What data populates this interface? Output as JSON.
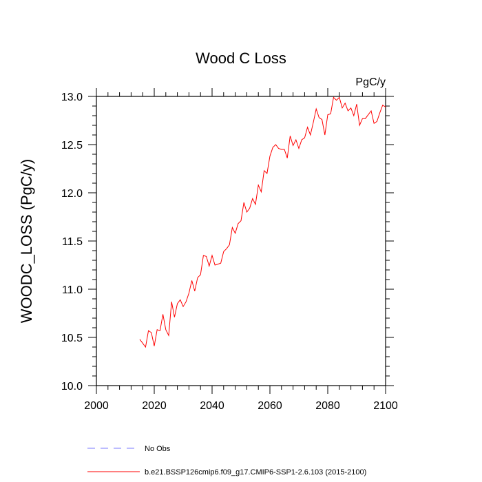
{
  "chart_data": {
    "type": "line",
    "title": "Wood C Loss",
    "units": "PgC/y",
    "xlabel": "",
    "ylabel": "WOODC_LOSS  (PgC/y)",
    "xlim": [
      2000,
      2100
    ],
    "ylim": [
      10.0,
      13.0
    ],
    "x_ticks": [
      "2000",
      "2020",
      "2040",
      "2060",
      "2080",
      "2100"
    ],
    "y_ticks": [
      "10.0",
      "10.5",
      "11.0",
      "11.5",
      "12.0",
      "12.5",
      "13.0"
    ],
    "series": [
      {
        "name": "b.e21.BSSP126cmip6.f09_g17.CMIP6-SSP1-2.6.103 (2015-2100)",
        "color": "#ff0000",
        "x": [
          2015,
          2016,
          2017,
          2018,
          2019,
          2020,
          2021,
          2022,
          2023,
          2024,
          2025,
          2026,
          2027,
          2028,
          2029,
          2030,
          2031,
          2032,
          2033,
          2034,
          2035,
          2036,
          2037,
          2038,
          2039,
          2040,
          2041,
          2042,
          2043,
          2044,
          2045,
          2046,
          2047,
          2048,
          2049,
          2050,
          2051,
          2052,
          2053,
          2054,
          2055,
          2056,
          2057,
          2058,
          2059,
          2060,
          2061,
          2062,
          2063,
          2064,
          2065,
          2066,
          2067,
          2068,
          2069,
          2070,
          2071,
          2072,
          2073,
          2074,
          2075,
          2076,
          2077,
          2078,
          2079,
          2080,
          2081,
          2082,
          2083,
          2084,
          2085,
          2086,
          2087,
          2088,
          2089,
          2090,
          2091,
          2092,
          2093,
          2094,
          2095,
          2096,
          2097,
          2098,
          2099,
          2100
        ],
        "values": [
          10.48,
          10.44,
          10.4,
          10.57,
          10.55,
          10.41,
          10.58,
          10.57,
          10.74,
          10.58,
          10.52,
          10.87,
          10.71,
          10.85,
          10.89,
          10.82,
          10.87,
          10.96,
          11.09,
          10.98,
          11.12,
          11.15,
          11.35,
          11.34,
          11.24,
          11.35,
          11.25,
          11.26,
          11.27,
          11.39,
          11.42,
          11.46,
          11.64,
          11.58,
          11.68,
          11.71,
          11.9,
          11.8,
          11.84,
          11.94,
          11.88,
          12.08,
          12.01,
          12.23,
          12.2,
          12.38,
          12.47,
          12.5,
          12.46,
          12.45,
          12.45,
          12.36,
          12.59,
          12.49,
          12.55,
          12.46,
          12.55,
          12.57,
          12.68,
          12.6,
          12.73,
          12.87,
          12.78,
          12.76,
          12.6,
          12.81,
          12.82,
          12.99,
          12.96,
          12.99,
          12.88,
          12.93,
          12.85,
          12.88,
          12.8,
          12.92,
          12.7,
          12.77,
          12.77,
          12.81,
          12.85,
          12.72,
          12.74,
          12.83,
          12.91,
          12.89
        ]
      },
      {
        "name": "No Obs",
        "color": "#7a7aff",
        "dashed": true,
        "x": [],
        "values": []
      }
    ],
    "legend_position": "bottom-left"
  }
}
